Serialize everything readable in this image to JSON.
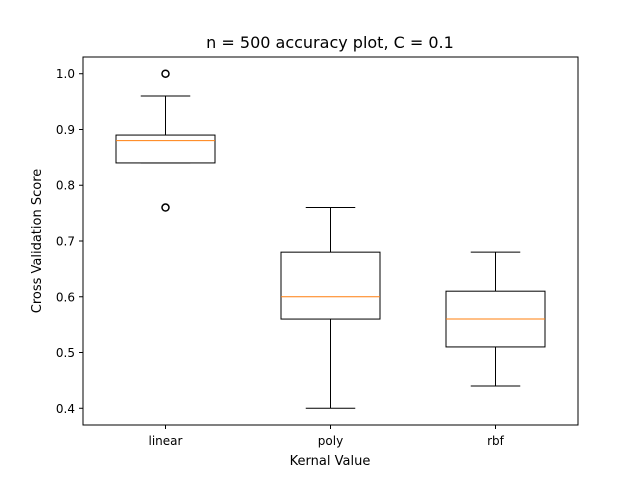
{
  "chart_data": {
    "type": "box",
    "title": "n = 500 accuracy plot, C = 0.1",
    "xlabel": "Kernal Value",
    "ylabel": "Cross Validation Score",
    "categories": [
      "linear",
      "poly",
      "rbf"
    ],
    "ylim": [
      0.37,
      1.03
    ],
    "yticks": [
      0.4,
      0.5,
      0.6,
      0.7,
      0.8,
      0.9,
      1.0
    ],
    "ytick_labels": [
      "0.4",
      "0.5",
      "0.6",
      "0.7",
      "0.8",
      "0.9",
      "1.0"
    ],
    "grid": false,
    "boxes": [
      {
        "category": "linear",
        "whisker_low": 0.84,
        "q1": 0.84,
        "median": 0.88,
        "q3": 0.89,
        "whisker_high": 0.96,
        "outliers": [
          1.0,
          0.76
        ]
      },
      {
        "category": "poly",
        "whisker_low": 0.4,
        "q1": 0.56,
        "median": 0.6,
        "q3": 0.68,
        "whisker_high": 0.76,
        "outliers": []
      },
      {
        "category": "rbf",
        "whisker_low": 0.44,
        "q1": 0.51,
        "median": 0.56,
        "q3": 0.61,
        "whisker_high": 0.68,
        "outliers": []
      }
    ],
    "colors": {
      "box": "#000000",
      "median": "#ff7f0e",
      "background": "#ffffff"
    }
  }
}
